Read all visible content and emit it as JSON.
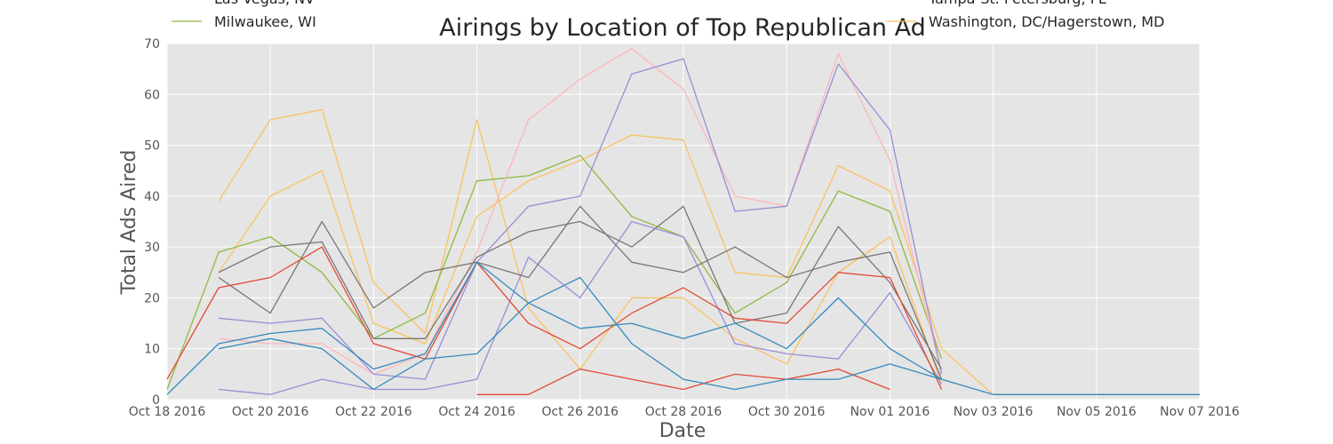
{
  "chart_data": {
    "type": "line",
    "title": "Airings by Location of Top Republican Ad",
    "xlabel": "Date",
    "ylabel": "Total Ads Aired",
    "x_ticks": [
      "Oct 18 2016",
      "Oct 20 2016",
      "Oct 22 2016",
      "Oct 24 2016",
      "Oct 26 2016",
      "Oct 28 2016",
      "Oct 30 2016",
      "Nov 01 2016",
      "Nov 03 2016",
      "Nov 05 2016",
      "Nov 07 2016"
    ],
    "y_ticks": [
      "0",
      "10",
      "20",
      "30",
      "40",
      "50",
      "60",
      "70"
    ],
    "xlim": [
      "2016-10-18",
      "2016-11-07"
    ],
    "ylim": [
      0,
      70
    ],
    "grid": true,
    "background": "#e5e5e5",
    "legend_left": [
      {
        "label": "Las Vegas, NV",
        "color": "#fbc15e"
      },
      {
        "label": "Milwaukee, WI",
        "color": "#8eba42"
      }
    ],
    "legend_right": [
      {
        "label": "Tampa-St. Petersburg, FL",
        "color": "#777777"
      },
      {
        "label": "Washington, DC/Hagerstown, MD",
        "color": "#fbc15e"
      }
    ],
    "series": [
      {
        "color": "#fbc15e",
        "points": [
          [
            "2016-10-19",
            39
          ],
          [
            "2016-10-20",
            55
          ],
          [
            "2016-10-21",
            57
          ],
          [
            "2016-10-22",
            23
          ],
          [
            "2016-10-23",
            13
          ],
          [
            "2016-10-24",
            55
          ],
          [
            "2016-10-25",
            18
          ],
          [
            "2016-10-26",
            6
          ],
          [
            "2016-10-27",
            20
          ],
          [
            "2016-10-28",
            20
          ],
          [
            "2016-10-29",
            12
          ],
          [
            "2016-10-30",
            7
          ],
          [
            "2016-10-31",
            25
          ],
          [
            "2016-11-01",
            32
          ],
          [
            "2016-11-02",
            3
          ]
        ]
      },
      {
        "color": "#fbc15e",
        "points": [
          [
            "2016-10-19",
            25
          ],
          [
            "2016-10-20",
            40
          ],
          [
            "2016-10-21",
            45
          ],
          [
            "2016-10-22",
            15
          ],
          [
            "2016-10-23",
            11
          ],
          [
            "2016-10-24",
            36
          ],
          [
            "2016-10-25",
            43
          ],
          [
            "2016-10-26",
            47
          ],
          [
            "2016-10-27",
            52
          ],
          [
            "2016-10-28",
            51
          ],
          [
            "2016-10-29",
            25
          ],
          [
            "2016-10-30",
            24
          ],
          [
            "2016-10-31",
            46
          ],
          [
            "2016-11-01",
            41
          ],
          [
            "2016-11-02",
            10
          ],
          [
            "2016-11-03",
            1
          ],
          [
            "2016-11-04",
            1
          ],
          [
            "2016-11-05",
            1
          ],
          [
            "2016-11-06",
            1
          ],
          [
            "2016-11-07",
            1
          ]
        ]
      },
      {
        "color": "#8eba42",
        "points": [
          [
            "2016-10-18",
            2
          ],
          [
            "2016-10-19",
            29
          ],
          [
            "2016-10-20",
            32
          ],
          [
            "2016-10-21",
            25
          ],
          [
            "2016-10-22",
            12
          ],
          [
            "2016-10-23",
            17
          ],
          [
            "2016-10-24",
            43
          ],
          [
            "2016-10-25",
            44
          ],
          [
            "2016-10-26",
            48
          ],
          [
            "2016-10-27",
            36
          ],
          [
            "2016-10-28",
            32
          ],
          [
            "2016-10-29",
            17
          ],
          [
            "2016-10-30",
            23
          ],
          [
            "2016-10-31",
            41
          ],
          [
            "2016-11-01",
            37
          ],
          [
            "2016-11-02",
            8
          ]
        ]
      },
      {
        "color": "#ffb5b8",
        "points": [
          [
            "2016-10-19",
            12
          ],
          [
            "2016-10-20",
            11
          ],
          [
            "2016-10-21",
            11
          ],
          [
            "2016-10-22",
            5
          ],
          [
            "2016-10-23",
            9
          ],
          [
            "2016-10-24",
            29
          ],
          [
            "2016-10-25",
            55
          ],
          [
            "2016-10-26",
            63
          ],
          [
            "2016-10-27",
            69
          ],
          [
            "2016-10-28",
            61
          ],
          [
            "2016-10-29",
            40
          ],
          [
            "2016-10-30",
            38
          ],
          [
            "2016-10-31",
            68
          ],
          [
            "2016-11-01",
            47
          ],
          [
            "2016-11-02",
            5
          ]
        ]
      },
      {
        "color": "#988ed5",
        "points": [
          [
            "2016-10-19",
            16
          ],
          [
            "2016-10-20",
            15
          ],
          [
            "2016-10-21",
            16
          ],
          [
            "2016-10-22",
            5
          ],
          [
            "2016-10-23",
            4
          ],
          [
            "2016-10-24",
            27
          ],
          [
            "2016-10-25",
            38
          ],
          [
            "2016-10-26",
            40
          ],
          [
            "2016-10-27",
            64
          ],
          [
            "2016-10-28",
            67
          ],
          [
            "2016-10-29",
            37
          ],
          [
            "2016-10-30",
            38
          ],
          [
            "2016-10-31",
            66
          ],
          [
            "2016-11-01",
            53
          ],
          [
            "2016-11-02",
            5
          ]
        ]
      },
      {
        "color": "#988ed5",
        "points": [
          [
            "2016-10-19",
            2
          ],
          [
            "2016-10-20",
            1
          ],
          [
            "2016-10-21",
            4
          ],
          [
            "2016-10-22",
            2
          ],
          [
            "2016-10-23",
            2
          ],
          [
            "2016-10-24",
            4
          ],
          [
            "2016-10-25",
            28
          ],
          [
            "2016-10-26",
            20
          ],
          [
            "2016-10-27",
            35
          ],
          [
            "2016-10-28",
            32
          ],
          [
            "2016-10-29",
            11
          ],
          [
            "2016-10-30",
            9
          ],
          [
            "2016-10-31",
            8
          ],
          [
            "2016-11-01",
            21
          ],
          [
            "2016-11-02",
            3
          ]
        ]
      },
      {
        "color": "#777777",
        "points": [
          [
            "2016-10-19",
            25
          ],
          [
            "2016-10-20",
            30
          ],
          [
            "2016-10-21",
            31
          ],
          [
            "2016-10-22",
            12
          ],
          [
            "2016-10-23",
            12
          ],
          [
            "2016-10-24",
            28
          ],
          [
            "2016-10-25",
            33
          ],
          [
            "2016-10-26",
            35
          ],
          [
            "2016-10-27",
            30
          ],
          [
            "2016-10-28",
            38
          ],
          [
            "2016-10-29",
            15
          ],
          [
            "2016-10-30",
            17
          ],
          [
            "2016-10-31",
            34
          ],
          [
            "2016-11-01",
            23
          ],
          [
            "2016-11-02",
            6
          ]
        ]
      },
      {
        "color": "#777777",
        "points": [
          [
            "2016-10-19",
            24
          ],
          [
            "2016-10-20",
            17
          ],
          [
            "2016-10-21",
            35
          ],
          [
            "2016-10-22",
            18
          ],
          [
            "2016-10-23",
            25
          ],
          [
            "2016-10-24",
            27
          ],
          [
            "2016-10-25",
            24
          ],
          [
            "2016-10-26",
            38
          ],
          [
            "2016-10-27",
            27
          ],
          [
            "2016-10-28",
            25
          ],
          [
            "2016-10-29",
            30
          ],
          [
            "2016-10-30",
            24
          ],
          [
            "2016-10-31",
            27
          ],
          [
            "2016-11-01",
            29
          ],
          [
            "2016-11-02",
            4
          ]
        ]
      },
      {
        "color": "#e24a33",
        "points": [
          [
            "2016-10-18",
            4
          ],
          [
            "2016-10-19",
            22
          ],
          [
            "2016-10-20",
            24
          ],
          [
            "2016-10-21",
            30
          ],
          [
            "2016-10-22",
            11
          ],
          [
            "2016-10-23",
            8
          ],
          [
            "2016-10-24",
            27
          ],
          [
            "2016-10-25",
            15
          ],
          [
            "2016-10-26",
            10
          ],
          [
            "2016-10-27",
            17
          ],
          [
            "2016-10-28",
            22
          ],
          [
            "2016-10-29",
            16
          ],
          [
            "2016-10-30",
            15
          ],
          [
            "2016-10-31",
            25
          ],
          [
            "2016-11-01",
            24
          ],
          [
            "2016-11-02",
            2
          ]
        ]
      },
      {
        "color": "#e24a33",
        "points": [
          [
            "2016-10-24",
            1
          ],
          [
            "2016-10-25",
            1
          ],
          [
            "2016-10-26",
            6
          ],
          [
            "2016-10-27",
            4
          ],
          [
            "2016-10-28",
            2
          ],
          [
            "2016-10-29",
            5
          ],
          [
            "2016-10-30",
            4
          ],
          [
            "2016-10-31",
            6
          ],
          [
            "2016-11-01",
            2
          ]
        ]
      },
      {
        "color": "#348abd",
        "points": [
          [
            "2016-10-18",
            1
          ],
          [
            "2016-10-19",
            11
          ],
          [
            "2016-10-20",
            13
          ],
          [
            "2016-10-21",
            14
          ],
          [
            "2016-10-22",
            6
          ],
          [
            "2016-10-23",
            9
          ],
          [
            "2016-10-24",
            27
          ],
          [
            "2016-10-25",
            19
          ],
          [
            "2016-10-26",
            24
          ],
          [
            "2016-10-27",
            11
          ],
          [
            "2016-10-28",
            4
          ],
          [
            "2016-10-29",
            2
          ],
          [
            "2016-10-30",
            4
          ],
          [
            "2016-10-31",
            4
          ],
          [
            "2016-11-01",
            7
          ],
          [
            "2016-11-02",
            4
          ],
          [
            "2016-11-03",
            1
          ],
          [
            "2016-11-04",
            1
          ],
          [
            "2016-11-05",
            1
          ],
          [
            "2016-11-06",
            1
          ],
          [
            "2016-11-07",
            1
          ]
        ]
      },
      {
        "color": "#348abd",
        "points": [
          [
            "2016-10-19",
            10
          ],
          [
            "2016-10-20",
            12
          ],
          [
            "2016-10-21",
            10
          ],
          [
            "2016-10-22",
            2
          ],
          [
            "2016-10-23",
            8
          ],
          [
            "2016-10-24",
            9
          ],
          [
            "2016-10-25",
            19
          ],
          [
            "2016-10-26",
            14
          ],
          [
            "2016-10-27",
            15
          ],
          [
            "2016-10-28",
            12
          ],
          [
            "2016-10-29",
            15
          ],
          [
            "2016-10-30",
            10
          ],
          [
            "2016-10-31",
            20
          ],
          [
            "2016-11-01",
            10
          ],
          [
            "2016-11-02",
            4
          ]
        ]
      }
    ]
  }
}
